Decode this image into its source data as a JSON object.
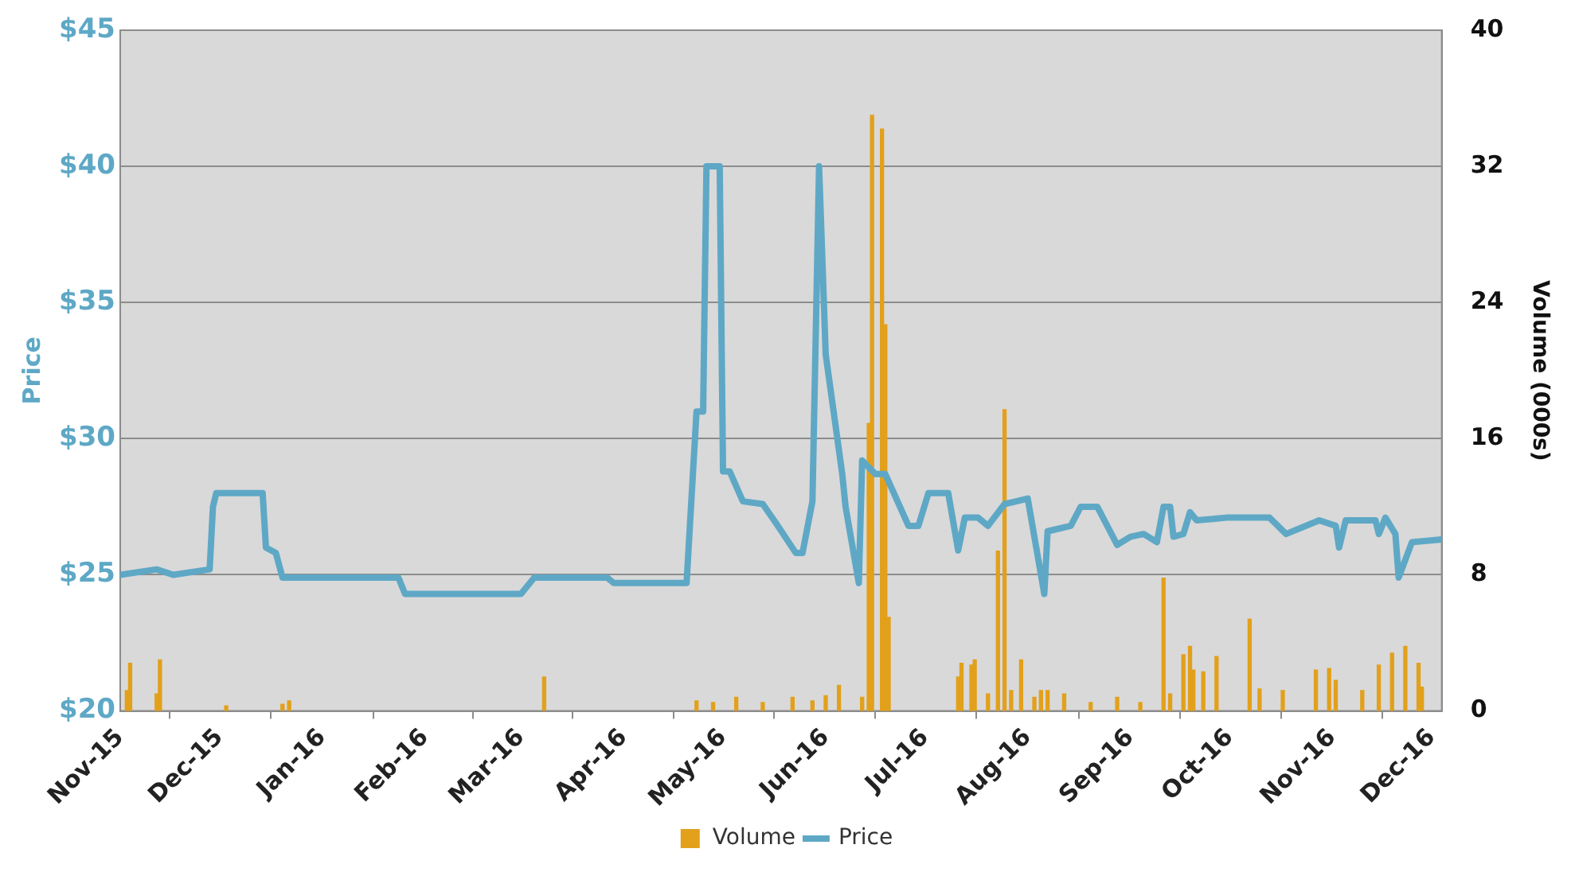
{
  "chart_data": {
    "type": "line",
    "ylabel": "Price",
    "y2label": "Volume (000s)",
    "grid": "y",
    "legend": "bottom",
    "marker": "none",
    "line_style": "solid",
    "xlim": [
      "2015-11-01",
      "2016-12-04"
    ],
    "xticks": [
      {
        "value": "2015-11-01",
        "label": "Nov-15"
      },
      {
        "value": "2015-12-01",
        "label": "Dec-15"
      },
      {
        "value": "2016-01-01",
        "label": "Jan-16"
      },
      {
        "value": "2016-02-01",
        "label": "Feb-16"
      },
      {
        "value": "2016-03-01",
        "label": "Mar-16"
      },
      {
        "value": "2016-04-01",
        "label": "Apr-16"
      },
      {
        "value": "2016-05-01",
        "label": "May-16"
      },
      {
        "value": "2016-06-01",
        "label": "Jun-16"
      },
      {
        "value": "2016-07-01",
        "label": "Jul-16"
      },
      {
        "value": "2016-08-01",
        "label": "Aug-16"
      },
      {
        "value": "2016-09-01",
        "label": "Sep-16"
      },
      {
        "value": "2016-10-01",
        "label": "Oct-16"
      },
      {
        "value": "2016-11-01",
        "label": "Nov-16"
      },
      {
        "value": "2016-12-01",
        "label": "Dec-16"
      }
    ],
    "ylim": [
      20,
      45
    ],
    "yticks": [
      {
        "value": 20,
        "label": "$20"
      },
      {
        "value": 25,
        "label": "$25"
      },
      {
        "value": 30,
        "label": "$30"
      },
      {
        "value": 35,
        "label": "$35"
      },
      {
        "value": 40,
        "label": "$40"
      },
      {
        "value": 45,
        "label": "$45"
      }
    ],
    "y2lim": [
      0,
      40
    ],
    "y2ticks": [
      0,
      8,
      16,
      24,
      32,
      40
    ],
    "series": [
      {
        "name": "Volume",
        "type": "bar",
        "axis": "y2",
        "color": "#e2a01b",
        "x": [
          "2015-11-03",
          "2015-11-04",
          "2015-11-12",
          "2015-11-13",
          "2015-12-03",
          "2015-12-20",
          "2015-12-22",
          "2016-03-08",
          "2016-04-23",
          "2016-04-28",
          "2016-05-05",
          "2016-05-13",
          "2016-05-22",
          "2016-05-28",
          "2016-06-01",
          "2016-06-05",
          "2016-06-12",
          "2016-06-14",
          "2016-06-15",
          "2016-06-18",
          "2016-06-19",
          "2016-06-20",
          "2016-07-11",
          "2016-07-12",
          "2016-07-15",
          "2016-07-16",
          "2016-07-20",
          "2016-07-23",
          "2016-07-25",
          "2016-07-27",
          "2016-07-30",
          "2016-08-03",
          "2016-08-05",
          "2016-08-07",
          "2016-08-12",
          "2016-08-20",
          "2016-08-28",
          "2016-09-04",
          "2016-09-11",
          "2016-09-13",
          "2016-09-17",
          "2016-09-19",
          "2016-09-20",
          "2016-09-23",
          "2016-09-27",
          "2016-10-07",
          "2016-10-10",
          "2016-10-17",
          "2016-10-27",
          "2016-10-31",
          "2016-11-02",
          "2016-11-10",
          "2016-11-15",
          "2016-11-19",
          "2016-11-23",
          "2016-11-27",
          "2016-11-28"
        ],
        "values": [
          1.2,
          2.8,
          1.0,
          3.0,
          0.3,
          0.4,
          0.6,
          2.0,
          0.6,
          0.5,
          0.8,
          0.5,
          0.8,
          0.6,
          0.9,
          1.5,
          0.8,
          16.9,
          35.0,
          34.2,
          22.7,
          5.5,
          2.0,
          2.8,
          2.7,
          3.0,
          1.0,
          9.4,
          17.7,
          1.2,
          3.0,
          0.8,
          1.2,
          1.2,
          1.0,
          0.5,
          0.8,
          0.5,
          7.8,
          1.0,
          3.3,
          3.8,
          2.4,
          2.3,
          3.2,
          5.4,
          1.3,
          1.2,
          2.4,
          2.5,
          1.8,
          1.2,
          2.7,
          3.4,
          3.8,
          2.8,
          1.4
        ]
      },
      {
        "name": "Price",
        "color": "#5ea8c6",
        "x": [
          "2015-11-01",
          "2015-11-12",
          "2015-11-17",
          "2015-11-28",
          "2015-11-29",
          "2015-11-30",
          "2015-12-14",
          "2015-12-15",
          "2015-12-18",
          "2015-12-20",
          "2016-01-24",
          "2016-01-26",
          "2016-03-01",
          "2016-03-05",
          "2016-03-27",
          "2016-03-29",
          "2016-04-20",
          "2016-04-23",
          "2016-04-25",
          "2016-04-26",
          "2016-04-30",
          "2016-05-01",
          "2016-05-03",
          "2016-05-07",
          "2016-05-13",
          "2016-05-17",
          "2016-05-23",
          "2016-05-25",
          "2016-05-28",
          "2016-05-30",
          "2016-06-01",
          "2016-06-06",
          "2016-06-07",
          "2016-06-11",
          "2016-06-12",
          "2016-06-16",
          "2016-06-19",
          "2016-06-26",
          "2016-06-29",
          "2016-07-02",
          "2016-07-08",
          "2016-07-11",
          "2016-07-13",
          "2016-07-17",
          "2016-07-20",
          "2016-07-25",
          "2016-08-01",
          "2016-08-06",
          "2016-08-07",
          "2016-08-14",
          "2016-08-17",
          "2016-08-22",
          "2016-08-25",
          "2016-08-28",
          "2016-09-01",
          "2016-09-05",
          "2016-09-09",
          "2016-09-11",
          "2016-09-13",
          "2016-09-14",
          "2016-09-17",
          "2016-09-19",
          "2016-09-21",
          "2016-09-30",
          "2016-10-13",
          "2016-10-18",
          "2016-10-28",
          "2016-11-02",
          "2016-11-03",
          "2016-11-05",
          "2016-11-14",
          "2016-11-15",
          "2016-11-17",
          "2016-11-20",
          "2016-11-21",
          "2016-11-25",
          "2016-12-04"
        ],
        "values": [
          25.0,
          25.2,
          25.0,
          25.2,
          27.5,
          28.0,
          28.0,
          26.0,
          25.8,
          24.9,
          24.9,
          24.3,
          24.3,
          24.9,
          24.9,
          24.7,
          24.7,
          31.0,
          31.0,
          40.0,
          40.0,
          28.8,
          28.8,
          27.7,
          27.6,
          26.9,
          25.8,
          25.8,
          27.7,
          40.0,
          33.1,
          28.7,
          27.5,
          24.7,
          29.2,
          28.7,
          28.7,
          26.8,
          26.8,
          28.0,
          28.0,
          25.9,
          27.1,
          27.1,
          26.8,
          27.6,
          27.8,
          24.3,
          26.6,
          26.8,
          27.5,
          27.5,
          26.8,
          26.1,
          26.4,
          26.5,
          26.2,
          27.5,
          27.5,
          26.4,
          26.5,
          27.3,
          27.0,
          27.1,
          27.1,
          26.5,
          27.0,
          26.8,
          26.0,
          27.0,
          27.0,
          26.5,
          27.1,
          26.5,
          24.9,
          26.2,
          26.3
        ]
      }
    ]
  }
}
